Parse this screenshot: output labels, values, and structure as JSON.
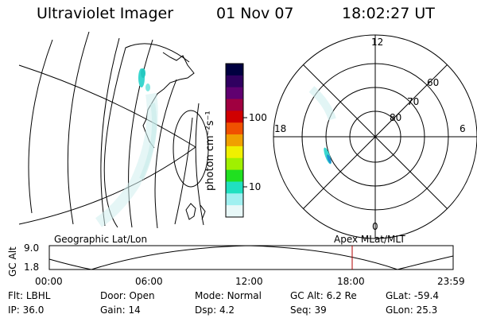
{
  "header": {
    "instrument": "Ultraviolet Imager",
    "date": "01 Nov 07",
    "time": "18:02:27 UT"
  },
  "colorbar": {
    "unit_label": "photon cm⁻²s⁻¹",
    "ticks": [
      "100",
      "10"
    ],
    "colors": [
      "#000040",
      "#300060",
      "#600070",
      "#a00040",
      "#d00000",
      "#f05000",
      "#f0a000",
      "#f0f000",
      "#a0f000",
      "#20e020",
      "#20e0c0",
      "#a0f0f0",
      "#e8f8f8"
    ]
  },
  "polar": {
    "mlt_labels": [
      "12",
      "18",
      "6",
      "0"
    ],
    "lat_labels": [
      "60",
      "70",
      "80"
    ]
  },
  "altitude_panel": {
    "left_title": "Geographic Lat/Lon",
    "right_title": "Apex MLat/MLT",
    "ylabel": "GC Alt",
    "yticks": [
      "9.0",
      "1.8"
    ],
    "xticks": [
      "00:00",
      "06:00",
      "12:00",
      "18:00",
      "23:59"
    ]
  },
  "status": {
    "row1": [
      {
        "label": "Flt:",
        "value": "LBHL"
      },
      {
        "label": "Door:",
        "value": "Open"
      },
      {
        "label": "Mode:",
        "value": "Normal"
      },
      {
        "label": "GC Alt:",
        "value": "6.2 Re"
      },
      {
        "label": "GLat:",
        "value": "-59.4"
      }
    ],
    "row2": [
      {
        "label": "IP:",
        "value": "36.0"
      },
      {
        "label": "Gain:",
        "value": "14"
      },
      {
        "label": "Dsp:",
        "value": "4.2"
      },
      {
        "label": "Seq:",
        "value": "39"
      },
      {
        "label": "GLon:",
        "value": "25.3"
      }
    ]
  }
}
